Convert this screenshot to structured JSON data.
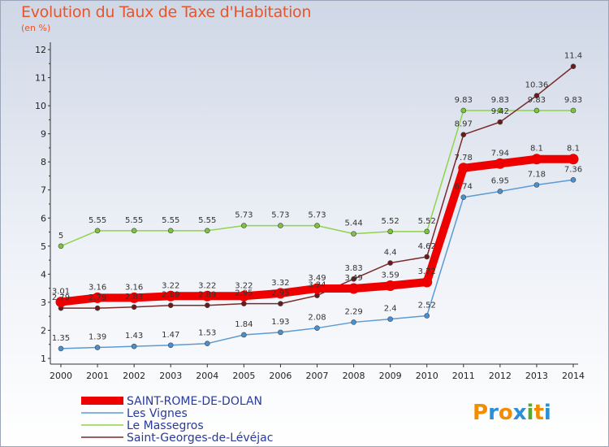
{
  "title": "Evolution du Taux de Taxe d'Habitation",
  "subtitle": "(en %)",
  "brand": {
    "text": "Proxiti",
    "letters": [
      "P",
      "r",
      "o",
      "x",
      "i",
      "t",
      "i"
    ],
    "colors": [
      "#f28c00",
      "#2a8fd6",
      "#f28c00",
      "#2a8fd6",
      "#5aa832",
      "#f28c00",
      "#2a8fd6"
    ]
  },
  "chart_data": {
    "type": "line",
    "title": "Evolution du Taux de Taxe d'Habitation",
    "ylabel": "(en %)",
    "xlabel": "",
    "ylim": [
      1,
      12
    ],
    "yticks": [
      "1",
      "2",
      "3",
      "4",
      "5",
      "6",
      "7",
      "8",
      "9",
      "10",
      "11",
      "12"
    ],
    "x": [
      "2000",
      "2001",
      "2002",
      "2003",
      "2004",
      "2005",
      "2006",
      "2007",
      "2008",
      "2009",
      "2010",
      "2011",
      "2012",
      "2013",
      "2014"
    ],
    "grid": false,
    "legend_position": "bottom-left",
    "series": [
      {
        "name": "SAINT-ROME-DE-DOLAN",
        "color": "#ee0000",
        "marker": "#ee0000",
        "values": [
          3.01,
          3.16,
          3.16,
          3.22,
          3.22,
          3.22,
          3.32,
          3.49,
          3.49,
          3.59,
          3.72,
          7.78,
          7.94,
          8.1,
          8.1
        ],
        "labels": [
          "3.01",
          "3.16",
          "3.16",
          "3.22",
          "3.22",
          "3.22",
          "3.32",
          "3.49",
          "3.49",
          "3.59",
          "3.72",
          "7.78",
          "7.94",
          "8.1",
          "8.1"
        ]
      },
      {
        "name": "Les Vignes",
        "color": "#5b9bd5",
        "marker": "#4a90d0",
        "values": [
          1.35,
          1.39,
          1.43,
          1.47,
          1.53,
          1.84,
          1.93,
          2.08,
          2.29,
          2.4,
          2.52,
          6.74,
          6.95,
          7.18,
          7.36
        ],
        "labels": [
          "1.35",
          "1.39",
          "1.43",
          "1.47",
          "1.53",
          "1.84",
          "1.93",
          "2.08",
          "2.29",
          "2.4",
          "2.52",
          "6.74",
          "6.95",
          "7.18",
          "7.36"
        ]
      },
      {
        "name": "Le Massegros",
        "color": "#8fd44a",
        "marker": "#7cc43a",
        "values": [
          5,
          5.55,
          5.55,
          5.55,
          5.55,
          5.73,
          5.73,
          5.73,
          5.44,
          5.52,
          5.52,
          9.83,
          9.83,
          9.83,
          9.83
        ],
        "labels": [
          "5",
          "5.55",
          "5.55",
          "5.55",
          "5.55",
          "5.73",
          "5.73",
          "5.73",
          "5.44",
          "5.52",
          "5.52",
          "9.83",
          "9.83",
          "9.83",
          "9.83"
        ]
      },
      {
        "name": "Saint-Georges-de-Lévéjac",
        "color": "#7a2a2a",
        "marker": "#6b1a1a",
        "values": [
          2.79,
          2.79,
          2.83,
          2.89,
          2.89,
          2.95,
          2.95,
          3.24,
          3.83,
          4.4,
          4.62,
          8.97,
          9.42,
          10.36,
          11.4
        ],
        "labels": [
          "2.79",
          "2.79",
          "2.83",
          "2.89",
          "2.89",
          "2.95",
          "2.95",
          "3.24",
          "3.83",
          "4.4",
          "4.62",
          "8.97",
          "9.42",
          "10.36",
          "11.4"
        ]
      }
    ]
  }
}
